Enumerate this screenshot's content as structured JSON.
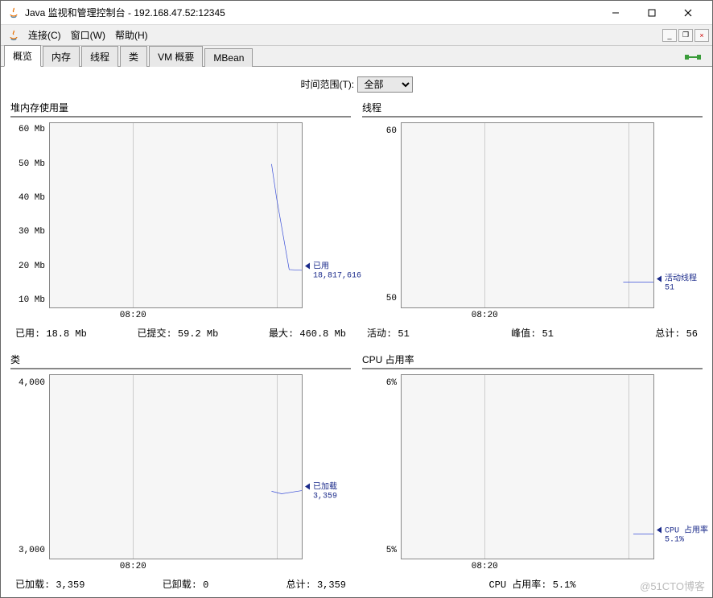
{
  "window": {
    "title": "Java 监视和管理控制台 - 192.168.47.52:12345"
  },
  "menu": {
    "connect": "连接(C)",
    "window": "窗口(W)",
    "help": "帮助(H)"
  },
  "tabs": {
    "overview": "概览",
    "memory": "内存",
    "threads": "线程",
    "classes": "类",
    "vmsummary": "VM 概要",
    "mbeans": "MBean",
    "active": "overview"
  },
  "timerange": {
    "label": "时间范围(T):",
    "value": "全部"
  },
  "charts": {
    "heap": {
      "title": "堆内存使用量",
      "type": "line",
      "ylim": [
        8,
        62
      ],
      "yticks": [
        {
          "v": 10,
          "l": "10 Mb"
        },
        {
          "v": 20,
          "l": "20 Mb"
        },
        {
          "v": 30,
          "l": "30 Mb"
        },
        {
          "v": 40,
          "l": "40 Mb"
        },
        {
          "v": 50,
          "l": "50 Mb"
        },
        {
          "v": 60,
          "l": "60 Mb"
        }
      ],
      "xticks": [
        {
          "p": 33,
          "l": "08:20"
        }
      ],
      "gridv": [
        33,
        90
      ],
      "line_color": "#3a4fd8",
      "points": [
        [
          88,
          50
        ],
        [
          90,
          40
        ],
        [
          95,
          19
        ],
        [
          100,
          18.8
        ]
      ],
      "legend": {
        "label": "已用",
        "value": "18,817,616",
        "yv": 19
      },
      "stats": [
        {
          "k": "已用:",
          "v": "18.8  Mb"
        },
        {
          "k": "已提交:",
          "v": "59.2  Mb"
        },
        {
          "k": "最大:",
          "v": "460.8  Mb"
        }
      ]
    },
    "threads": {
      "title": "线程",
      "type": "line",
      "ylim": [
        49.5,
        60.5
      ],
      "yticks": [
        {
          "v": 50,
          "l": "50"
        },
        {
          "v": 60,
          "l": "60"
        }
      ],
      "xticks": [
        {
          "p": 33,
          "l": "08:20"
        }
      ],
      "gridv": [
        33,
        90
      ],
      "line_color": "#3a4fd8",
      "points": [
        [
          88,
          51
        ],
        [
          100,
          51
        ]
      ],
      "legend": {
        "label": "活动线程",
        "value": "51",
        "yv": 51
      },
      "stats": [
        {
          "k": "活动:",
          "v": "51"
        },
        {
          "k": "峰值:",
          "v": "51"
        },
        {
          "k": "总计:",
          "v": "56"
        }
      ]
    },
    "classes": {
      "title": "类",
      "type": "line",
      "ylim": [
        2950,
        4050
      ],
      "yticks": [
        {
          "v": 3000,
          "l": "3,000"
        },
        {
          "v": 4000,
          "l": "4,000"
        }
      ],
      "xticks": [
        {
          "p": 33,
          "l": "08:20"
        }
      ],
      "gridv": [
        33,
        90
      ],
      "line_color": "#3a4fd8",
      "points": [
        [
          88,
          3355
        ],
        [
          92,
          3340
        ],
        [
          100,
          3359
        ]
      ],
      "legend": {
        "label": "已加载",
        "value": "3,359",
        "yv": 3359
      },
      "stats": [
        {
          "k": "已加载:",
          "v": "3,359"
        },
        {
          "k": "已卸载:",
          "v": "0"
        },
        {
          "k": "总计:",
          "v": "3,359"
        }
      ]
    },
    "cpu": {
      "title": "CPU 占用率",
      "type": "line",
      "ylim": [
        4.95,
        6.05
      ],
      "yticks": [
        {
          "v": 5,
          "l": "5%"
        },
        {
          "v": 6,
          "l": "6%"
        }
      ],
      "xticks": [
        {
          "p": 33,
          "l": "08:20"
        }
      ],
      "gridv": [
        33,
        90
      ],
      "line_color": "#3a4fd8",
      "points": [
        [
          92,
          5.1
        ],
        [
          100,
          5.1
        ]
      ],
      "legend": {
        "label": "CPU 占用率",
        "value": "5.1%",
        "yv": 5.1
      },
      "stats": [
        {
          "k": "CPU 占用率:",
          "v": "5.1%",
          "center": true
        }
      ]
    }
  },
  "colors": {
    "chart_bg": "#f6f6f6",
    "grid": "#cccccc",
    "border": "#888888",
    "line": "#3a4fd8",
    "legend_text": "#1a2a8a"
  },
  "watermark": "@51CTO博客"
}
